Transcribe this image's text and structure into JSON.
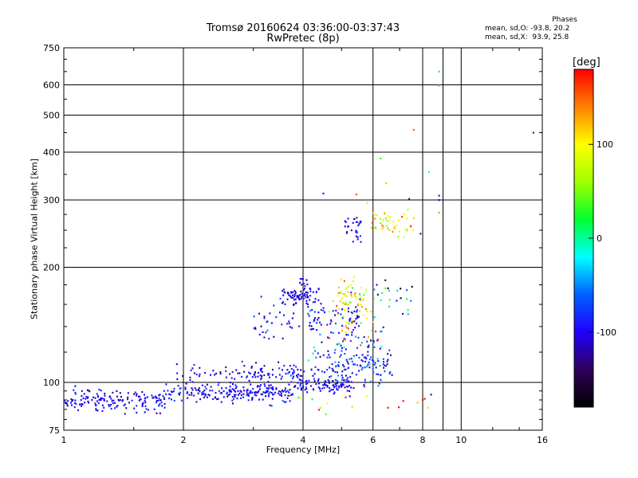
{
  "header": {
    "title_line1": "Tromsø 20160624 03:36:00-03:37:43",
    "title_line2": "RwPretec (8p)"
  },
  "phases": {
    "heading": "Phases",
    "o_mode": "mean, sd,O: -93.8, 20.2",
    "x_mode": "mean, sd,X:  93.9, 25.8"
  },
  "colors": {
    "grid": "#000000",
    "background": "#ffffff",
    "colorbar_stops": [
      "#000000",
      "#30005a",
      "#2000ff",
      "#0060ff",
      "#00ffff",
      "#00ff30",
      "#a0ff00",
      "#ffff00",
      "#ff8000",
      "#ff0000"
    ]
  },
  "colorbar": {
    "title": "[deg]",
    "ticks": [
      {
        "label": "100",
        "value": 100
      },
      {
        "label": "0",
        "value": 0
      },
      {
        "label": "-100",
        "value": -100
      }
    ],
    "range": [
      -180,
      180
    ]
  },
  "chart_data": {
    "type": "scatter",
    "xlabel": "Frequency [MHz]",
    "ylabel": "Stationary phase Virtual Height [km]",
    "xscale": "log",
    "yscale": "log",
    "xlim": [
      1,
      16
    ],
    "ylim": [
      75,
      750
    ],
    "grid": true,
    "x_ticks": [
      1,
      2,
      4,
      6,
      8,
      10,
      16
    ],
    "x_tick_labels": [
      "1",
      "2",
      "4",
      "6",
      "8",
      "10",
      "16"
    ],
    "y_ticks": [
      75,
      100,
      200,
      300,
      400,
      500,
      600,
      750
    ],
    "y_tick_labels": [
      "75",
      "100",
      "200",
      "300",
      "400",
      "500",
      "600",
      "750"
    ],
    "color_variable": "phase [deg]",
    "clusters": [
      {
        "x_range": [
          1.0,
          1.8
        ],
        "y_center": 89,
        "y_spread": 0.035,
        "phase": -100,
        "phase_spread": 15,
        "count": 160
      },
      {
        "x_range": [
          1.8,
          3.8
        ],
        "y_center": 94,
        "y_spread": 0.03,
        "phase": -100,
        "phase_spread": 15,
        "count": 200
      },
      {
        "x_range": [
          1.9,
          3.2
        ],
        "y_center": 104,
        "y_spread": 0.04,
        "phase": -100,
        "phase_spread": 15,
        "count": 50
      },
      {
        "x_range": [
          3.8,
          5.4
        ],
        "y_center": 98,
        "y_spread": 0.025,
        "phase": -100,
        "phase_spread": 15,
        "count": 100
      },
      {
        "x_range": [
          2.8,
          4.6
        ],
        "y_center": 106,
        "y_spread": 0.03,
        "phase": -95,
        "phase_spread": 15,
        "count": 70
      },
      {
        "x_range": [
          4.6,
          6.8
        ],
        "y_center": 110,
        "y_spread": 0.05,
        "phase": -90,
        "phase_spread": 25,
        "count": 100
      },
      {
        "x_range": [
          3.0,
          4.0
        ],
        "y_center": 140,
        "y_spread": 0.07,
        "phase": -95,
        "phase_spread": 20,
        "count": 35
      },
      {
        "x_range": [
          3.5,
          4.4
        ],
        "y_center": 168,
        "y_spread": 0.025,
        "phase": -105,
        "phase_spread": 15,
        "count": 70
      },
      {
        "x_range": [
          3.9,
          4.2
        ],
        "y_center": 180,
        "y_spread": 0.04,
        "phase": -100,
        "phase_spread": 15,
        "count": 15
      },
      {
        "x_range": [
          4.1,
          5.6
        ],
        "y_center": 150,
        "y_spread": 0.05,
        "phase": -100,
        "phase_spread": 20,
        "count": 70
      },
      {
        "x_range": [
          4.1,
          6.4
        ],
        "y_center": 125,
        "y_spread": 0.06,
        "phase": -80,
        "phase_spread": 40,
        "count": 60
      },
      {
        "x_range": [
          4.8,
          5.8
        ],
        "y_center": 168,
        "y_spread": 0.04,
        "phase": 95,
        "phase_spread": 35,
        "count": 45
      },
      {
        "x_range": [
          4.6,
          6.2
        ],
        "y_center": 145,
        "y_spread": 0.07,
        "phase": 110,
        "phase_spread": 40,
        "count": 40
      },
      {
        "x_range": [
          6.0,
          7.6
        ],
        "y_center": 165,
        "y_spread": 0.06,
        "phase": -60,
        "phase_spread": 60,
        "count": 25
      },
      {
        "x_range": [
          5.1,
          5.6
        ],
        "y_center": 255,
        "y_spread": 0.05,
        "phase": -100,
        "phase_spread": 15,
        "count": 30
      },
      {
        "x_range": [
          5.8,
          7.6
        ],
        "y_center": 262,
        "y_spread": 0.04,
        "phase": 105,
        "phase_spread": 40,
        "count": 45
      },
      {
        "x_range": [
          3.0,
          8.6
        ],
        "y_center": 88,
        "y_spread": 0.04,
        "phase": 60,
        "phase_spread": 110,
        "count": 20
      },
      {
        "x_range": [
          5.4,
          6.8
        ],
        "y_center": 320,
        "y_spread": 0.08,
        "phase": 110,
        "phase_spread": 50,
        "count": 4
      }
    ],
    "outliers": [
      {
        "x": 4.5,
        "y": 312,
        "phase": -100
      },
      {
        "x": 8.3,
        "y": 355,
        "phase": -20
      },
      {
        "x": 8.8,
        "y": 300,
        "phase": -110
      },
      {
        "x": 8.8,
        "y": 308,
        "phase": -110
      },
      {
        "x": 8.8,
        "y": 278,
        "phase": 140
      },
      {
        "x": 7.6,
        "y": 458,
        "phase": 150
      },
      {
        "x": 8.8,
        "y": 650,
        "phase": -30
      },
      {
        "x": 8.8,
        "y": 598,
        "phase": 150
      },
      {
        "x": 15.2,
        "y": 450,
        "phase": -110
      },
      {
        "x": 8.4,
        "y": 93,
        "phase": -110
      },
      {
        "x": 7.9,
        "y": 245,
        "phase": -110
      },
      {
        "x": 7.4,
        "y": 302,
        "phase": -120
      }
    ]
  }
}
